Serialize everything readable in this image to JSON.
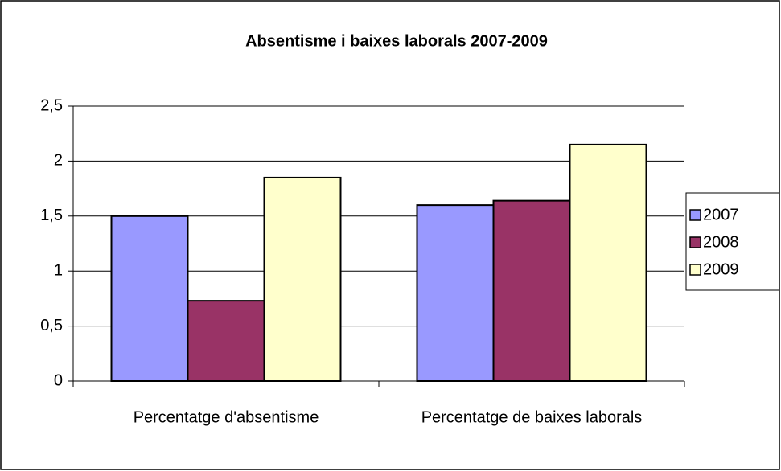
{
  "chart_data": {
    "type": "bar",
    "title": "Absentisme i baixes laborals 2007-2009",
    "categories": [
      "Percentatge d'absentisme",
      "Percentatge de baixes laborals"
    ],
    "series": [
      {
        "name": "2007",
        "color": "#9999ff",
        "values": [
          1.5,
          1.6
        ]
      },
      {
        "name": "2008",
        "color": "#993366",
        "values": [
          0.73,
          1.64
        ]
      },
      {
        "name": "2009",
        "color": "#ffffcc",
        "values": [
          1.85,
          2.15
        ]
      }
    ],
    "ylim": [
      0,
      2.5
    ],
    "yticks": [
      0,
      {
        "value": 0.5,
        "label": "0,5"
      },
      1,
      {
        "value": 1.5,
        "label": "1,5"
      },
      2,
      {
        "value": 2.5,
        "label": "2,5"
      }
    ],
    "grid": true,
    "legend": "right"
  }
}
